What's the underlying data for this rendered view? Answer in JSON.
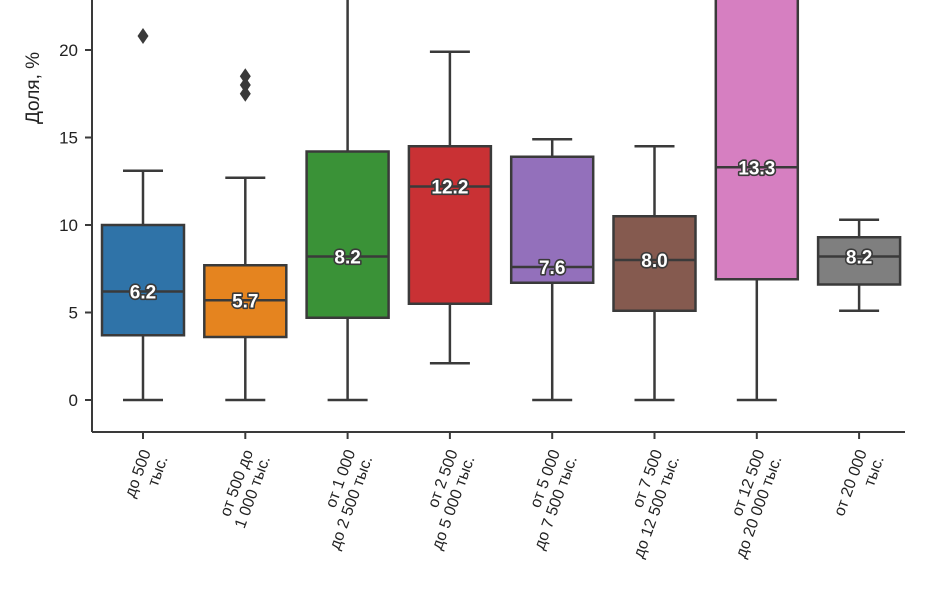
{
  "chart_data": {
    "type": "box",
    "ylabel": "Доля, %",
    "ylim": [
      -1.8,
      22.7
    ],
    "yticks": [
      0,
      5,
      10,
      15,
      20
    ],
    "grid": false,
    "line_color": "#3a3a3a",
    "categories": [
      {
        "label": [
          "до 500",
          "тыс."
        ],
        "color": "#2f73a8",
        "q1": 3.7,
        "median": 6.2,
        "q3": 10.0,
        "whisker_low": 0,
        "whisker_high": 13.1,
        "outliers": [
          20.8
        ],
        "median_label": "6.2"
      },
      {
        "label": [
          "от 500 до",
          "1 000 тыс."
        ],
        "color": "#e5841f",
        "q1": 3.6,
        "median": 5.7,
        "q3": 7.7,
        "whisker_low": 0,
        "whisker_high": 12.7,
        "outliers": [
          17.5,
          18.0,
          18.5
        ],
        "median_label": "5.7"
      },
      {
        "label": [
          "от 1 000",
          "до 2 500 тыс."
        ],
        "color": "#3a9237",
        "q1": 4.7,
        "median": 8.2,
        "q3": 14.2,
        "whisker_low": 0,
        "whisker_high": 23.5,
        "outliers": [],
        "median_label": "8.2"
      },
      {
        "label": [
          "от 2 500",
          "до 5 000 тыс."
        ],
        "color": "#c93134",
        "q1": 5.5,
        "median": 12.2,
        "q3": 14.5,
        "whisker_low": 2.1,
        "whisker_high": 19.9,
        "outliers": [],
        "median_label": "12.2"
      },
      {
        "label": [
          "от 5 000",
          "до 7 500 тыс."
        ],
        "color": "#9370bb",
        "q1": 6.7,
        "median": 7.6,
        "q3": 13.9,
        "whisker_low": 0,
        "whisker_high": 14.9,
        "outliers": [],
        "median_label": "7.6"
      },
      {
        "label": [
          "от 7 500",
          "до 12 500 тыс."
        ],
        "color": "#855a4f",
        "q1": 5.1,
        "median": 8.0,
        "q3": 10.5,
        "whisker_low": 0,
        "whisker_high": 14.5,
        "outliers": [],
        "median_label": "8.0"
      },
      {
        "label": [
          "от 12 500",
          "до 20 000 тыс."
        ],
        "color": "#d67fc1",
        "q1": 6.9,
        "median": 13.3,
        "q3": 23.5,
        "whisker_low": 0,
        "whisker_high": 23.5,
        "outliers": [],
        "median_label": "13.3"
      },
      {
        "label": [
          "от 20 000",
          "тыс."
        ],
        "color": "#7f7f7f",
        "q1": 6.6,
        "median": 8.2,
        "q3": 9.3,
        "whisker_low": 5.1,
        "whisker_high": 10.3,
        "outliers": [],
        "median_label": "8.2"
      }
    ]
  }
}
